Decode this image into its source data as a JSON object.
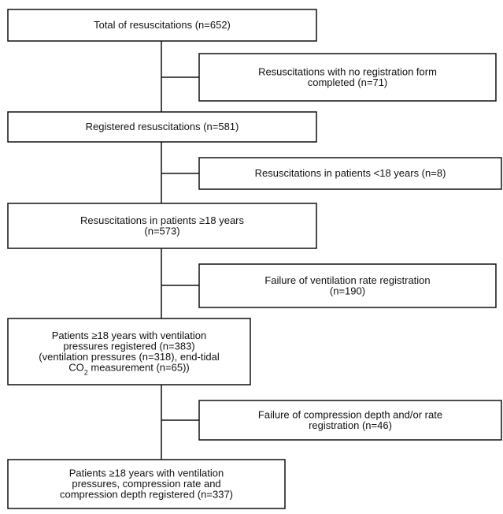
{
  "nodes": [
    {
      "lines": [
        "Total of resuscitations (n=652)"
      ]
    },
    {
      "lines": [
        "Resuscitations with no registration form",
        "completed (n=71)"
      ]
    },
    {
      "lines": [
        "Registered resuscitations (n=581)"
      ]
    },
    {
      "lines": [
        "Resuscitations in patients <18 years (n=8)"
      ]
    },
    {
      "lines": [
        "Resuscitations in patients ≥18 years",
        "(n=573)"
      ]
    },
    {
      "lines": [
        "Failure of ventilation rate registration",
        "(n=190)"
      ]
    },
    {
      "lines": [
        "Patients ≥18 years with ventilation",
        "pressures registered (n=383)",
        "(ventilation pressures (n=318), end-tidal"
      ],
      "subscript_line": {
        "before": "CO",
        "sub": "2",
        "after": " measurement (n=65))"
      }
    },
    {
      "lines": [
        "Failure of compression depth and/or rate",
        "registration (n=46)"
      ]
    },
    {
      "lines": [
        "Patients ≥18 years with ventilation",
        "pressures, compression rate and",
        "compression depth registered (n=337)"
      ]
    }
  ]
}
